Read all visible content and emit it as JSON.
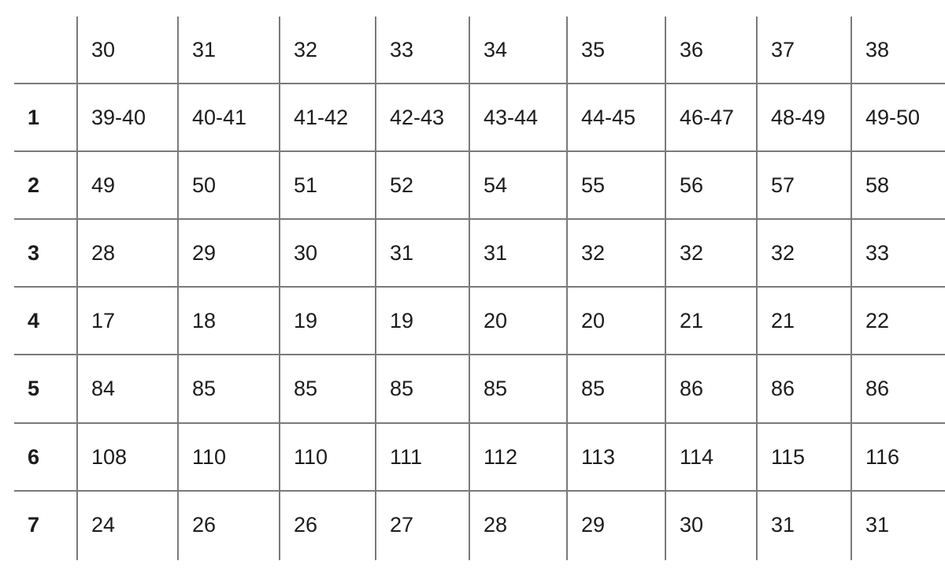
{
  "table": {
    "header": [
      "",
      "30",
      "31",
      "32",
      "33",
      "34",
      "35",
      "36",
      "37",
      "38"
    ],
    "rows": [
      [
        "1",
        "39-40",
        "40-41",
        "41-42",
        "42-43",
        "43-44",
        "44-45",
        "46-47",
        "48-49",
        "49-50"
      ],
      [
        "2",
        "49",
        "50",
        "51",
        "52",
        "54",
        "55",
        "56",
        "57",
        "58"
      ],
      [
        "3",
        "28",
        "29",
        "30",
        "31",
        "31",
        "32",
        "32",
        "32",
        "33"
      ],
      [
        "4",
        "17",
        "18",
        "19",
        "19",
        "20",
        "20",
        "21",
        "21",
        "22"
      ],
      [
        "5",
        "84",
        "85",
        "85",
        "85",
        "85",
        "85",
        "86",
        "86",
        "86"
      ],
      [
        "6",
        "108",
        "110",
        "110",
        "111",
        "112",
        "113",
        "114",
        "115",
        "116"
      ],
      [
        "7",
        "24",
        "26",
        "26",
        "27",
        "28",
        "29",
        "30",
        "31",
        "31"
      ]
    ],
    "line_color": "#7a7a7a"
  }
}
